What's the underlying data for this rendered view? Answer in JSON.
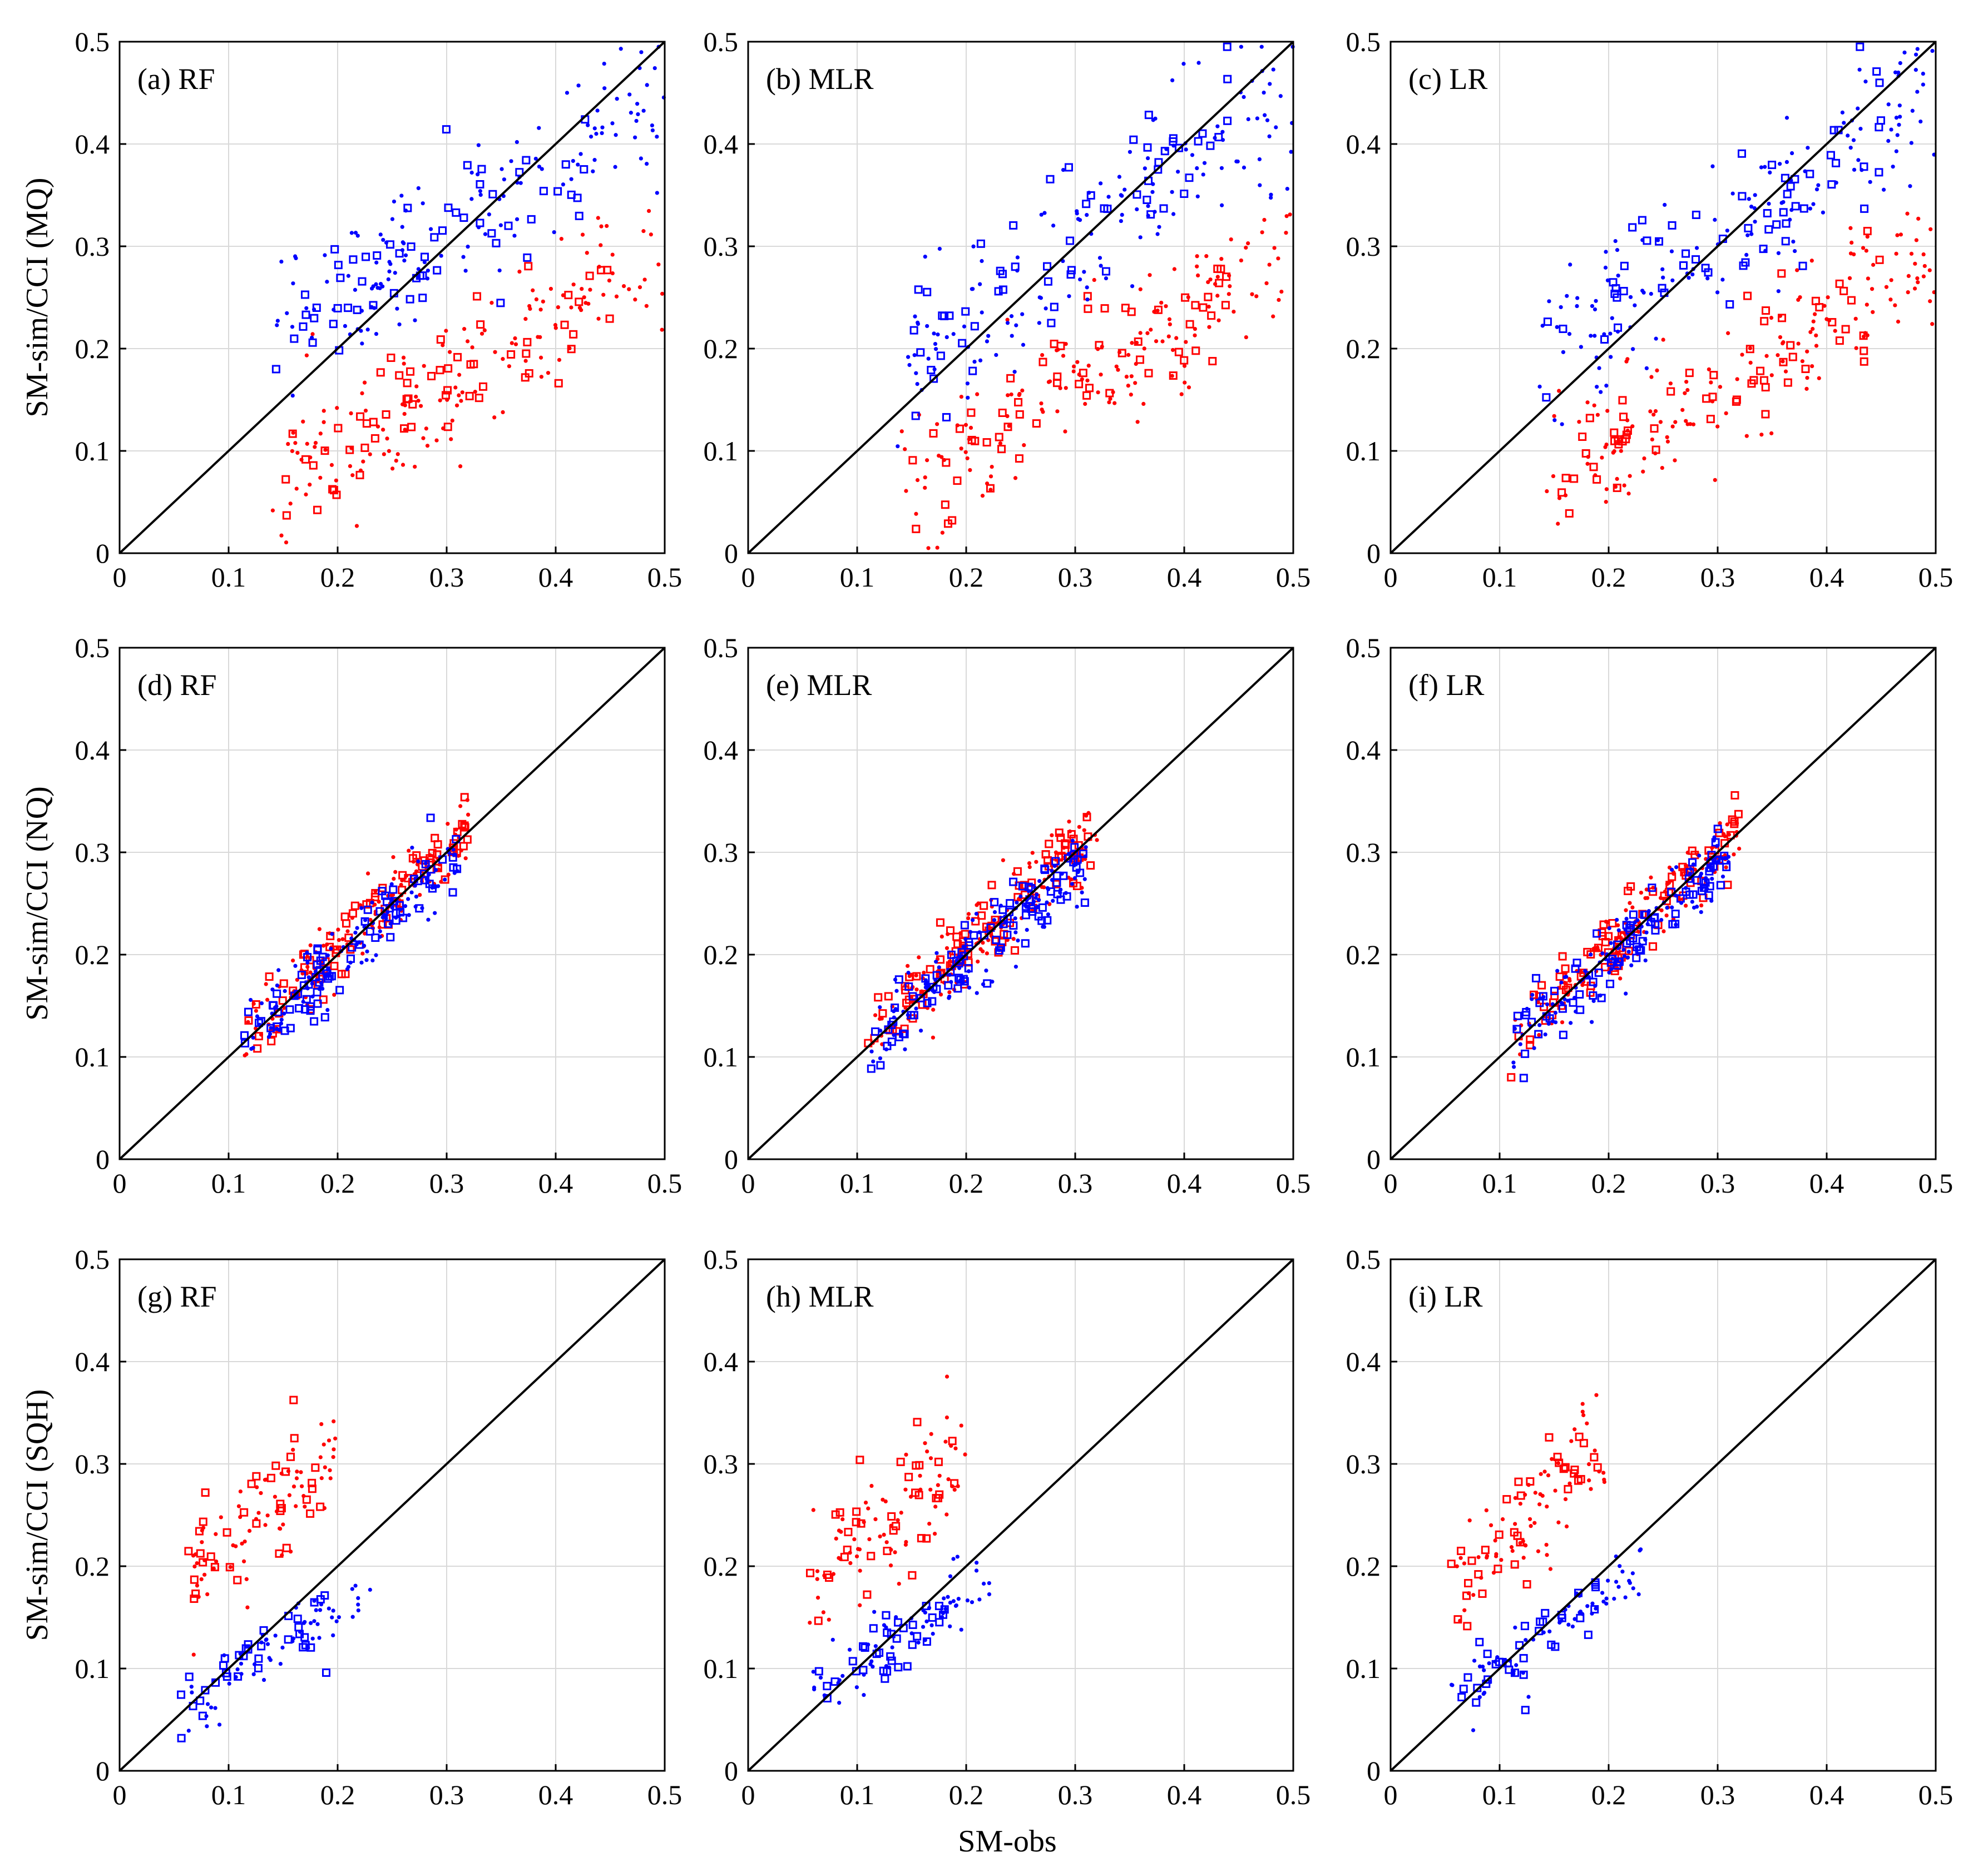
{
  "figure": {
    "xlabel": "SM-obs",
    "colors": {
      "red_series": "#ff0000",
      "blue_series": "#0000ff",
      "grid": "#d9d9d9",
      "axis": "#000000"
    }
  },
  "chart_data": [
    {
      "type": "scatter",
      "title": "(a) RF",
      "ylabel": "SM-sim/CCI (MQ)",
      "xlim": [
        0,
        0.5
      ],
      "ylim": [
        0,
        0.5
      ],
      "xticks": [
        "0",
        "0.1",
        "0.2",
        "0.3",
        "0.4",
        "0.5"
      ],
      "yticks": [
        "0",
        "0.1",
        "0.2",
        "0.3",
        "0.4",
        "0.5"
      ],
      "grid": true,
      "diagonal": true,
      "series": [
        {
          "name": "red-dots",
          "marker": "dot",
          "color": "#ff0000",
          "cluster": {
            "count": 150,
            "x": [
              0.14,
              0.5
            ],
            "intercept": -0.02,
            "slope": 0.62,
            "spread": 0.035,
            "seed": 11
          }
        },
        {
          "name": "red-squares",
          "marker": "square",
          "color": "#ff0000",
          "cluster": {
            "count": 60,
            "x": [
              0.15,
              0.45
            ],
            "intercept": -0.02,
            "slope": 0.62,
            "spread": 0.035,
            "seed": 12
          }
        },
        {
          "name": "blue-dots",
          "marker": "dot",
          "color": "#0000ff",
          "cluster": {
            "count": 140,
            "x": [
              0.14,
              0.5
            ],
            "intercept": 0.13,
            "slope": 0.62,
            "spread": 0.035,
            "seed": 13
          }
        },
        {
          "name": "blue-squares",
          "marker": "square",
          "color": "#0000ff",
          "cluster": {
            "count": 60,
            "x": [
              0.14,
              0.45
            ],
            "intercept": 0.13,
            "slope": 0.62,
            "spread": 0.035,
            "seed": 14
          }
        }
      ]
    },
    {
      "type": "scatter",
      "title": "(b) MLR",
      "ylabel": "",
      "xlim": [
        0,
        0.5
      ],
      "ylim": [
        0,
        0.5
      ],
      "xticks": [
        "0",
        "0.1",
        "0.2",
        "0.3",
        "0.4",
        "0.5"
      ],
      "yticks": [
        "0",
        "0.1",
        "0.2",
        "0.3",
        "0.4",
        "0.5"
      ],
      "grid": true,
      "diagonal": true,
      "series": [
        {
          "name": "red-dots",
          "marker": "dot",
          "color": "#ff0000",
          "cluster": {
            "count": 150,
            "x": [
              0.14,
              0.5
            ],
            "intercept": -0.02,
            "slope": 0.62,
            "spread": 0.035,
            "seed": 21
          }
        },
        {
          "name": "red-squares",
          "marker": "square",
          "color": "#ff0000",
          "cluster": {
            "count": 60,
            "x": [
              0.15,
              0.45
            ],
            "intercept": -0.02,
            "slope": 0.62,
            "spread": 0.035,
            "seed": 22
          }
        },
        {
          "name": "blue-dots",
          "marker": "dot",
          "color": "#0000ff",
          "cluster": {
            "count": 140,
            "x": [
              0.13,
              0.5
            ],
            "intercept": 0.09,
            "slope": 0.72,
            "spread": 0.04,
            "seed": 23
          }
        },
        {
          "name": "blue-squares",
          "marker": "square",
          "color": "#0000ff",
          "cluster": {
            "count": 60,
            "x": [
              0.14,
              0.45
            ],
            "intercept": 0.09,
            "slope": 0.72,
            "spread": 0.04,
            "seed": 24
          }
        }
      ]
    },
    {
      "type": "scatter",
      "title": "(c) LR",
      "ylabel": "",
      "xlim": [
        0,
        0.5
      ],
      "ylim": [
        0,
        0.5
      ],
      "xticks": [
        "0",
        "0.1",
        "0.2",
        "0.3",
        "0.4",
        "0.5"
      ],
      "yticks": [
        "0",
        "0.1",
        "0.2",
        "0.3",
        "0.4",
        "0.5"
      ],
      "grid": true,
      "diagonal": true,
      "series": [
        {
          "name": "red-dots",
          "marker": "dot",
          "color": "#ff0000",
          "cluster": {
            "count": 150,
            "x": [
              0.14,
              0.5
            ],
            "intercept": -0.02,
            "slope": 0.62,
            "spread": 0.035,
            "seed": 31
          }
        },
        {
          "name": "red-squares",
          "marker": "square",
          "color": "#ff0000",
          "cluster": {
            "count": 60,
            "x": [
              0.15,
              0.45
            ],
            "intercept": -0.02,
            "slope": 0.62,
            "spread": 0.035,
            "seed": 32
          }
        },
        {
          "name": "blue-dots",
          "marker": "dot",
          "color": "#0000ff",
          "cluster": {
            "count": 140,
            "x": [
              0.13,
              0.5
            ],
            "intercept": 0.09,
            "slope": 0.72,
            "spread": 0.04,
            "seed": 33
          }
        },
        {
          "name": "blue-squares",
          "marker": "square",
          "color": "#0000ff",
          "cluster": {
            "count": 60,
            "x": [
              0.14,
              0.45
            ],
            "intercept": 0.09,
            "slope": 0.72,
            "spread": 0.04,
            "seed": 34
          }
        }
      ]
    },
    {
      "type": "scatter",
      "title": "(d) RF",
      "ylabel": "SM-sim/CCI (NQ)",
      "xlim": [
        0,
        0.5
      ],
      "ylim": [
        0,
        0.5
      ],
      "xticks": [
        "0",
        "0.1",
        "0.2",
        "0.3",
        "0.4",
        "0.5"
      ],
      "yticks": [
        "0",
        "0.1",
        "0.2",
        "0.3",
        "0.4",
        "0.5"
      ],
      "grid": true,
      "diagonal": true,
      "series": [
        {
          "name": "red-dots",
          "marker": "dot",
          "color": "#ff0000",
          "cluster": {
            "count": 110,
            "x": [
              0.11,
              0.32
            ],
            "intercept": 0.01,
            "slope": 0.98,
            "spread": 0.018,
            "seed": 41
          }
        },
        {
          "name": "red-squares",
          "marker": "square",
          "color": "#ff0000",
          "cluster": {
            "count": 80,
            "x": [
              0.11,
              0.32
            ],
            "intercept": 0.01,
            "slope": 0.98,
            "spread": 0.018,
            "seed": 42
          }
        },
        {
          "name": "blue-dots",
          "marker": "dot",
          "color": "#0000ff",
          "cluster": {
            "count": 110,
            "x": [
              0.11,
              0.31
            ],
            "intercept": 0.015,
            "slope": 0.9,
            "spread": 0.018,
            "seed": 43
          }
        },
        {
          "name": "blue-squares",
          "marker": "square",
          "color": "#0000ff",
          "cluster": {
            "count": 80,
            "x": [
              0.11,
              0.31
            ],
            "intercept": 0.015,
            "slope": 0.9,
            "spread": 0.018,
            "seed": 44
          }
        }
      ]
    },
    {
      "type": "scatter",
      "title": "(e) MLR",
      "ylabel": "",
      "xlim": [
        0,
        0.5
      ],
      "ylim": [
        0,
        0.5
      ],
      "xticks": [
        "0",
        "0.1",
        "0.2",
        "0.3",
        "0.4",
        "0.5"
      ],
      "yticks": [
        "0",
        "0.1",
        "0.2",
        "0.3",
        "0.4",
        "0.5"
      ],
      "grid": true,
      "diagonal": true,
      "series": [
        {
          "name": "red-dots",
          "marker": "dot",
          "color": "#ff0000",
          "cluster": {
            "count": 110,
            "x": [
              0.11,
              0.32
            ],
            "intercept": 0.01,
            "slope": 0.98,
            "spread": 0.018,
            "seed": 51
          }
        },
        {
          "name": "red-squares",
          "marker": "square",
          "color": "#ff0000",
          "cluster": {
            "count": 90,
            "x": [
              0.11,
              0.32
            ],
            "intercept": 0.01,
            "slope": 0.98,
            "spread": 0.018,
            "seed": 52
          }
        },
        {
          "name": "blue-dots",
          "marker": "dot",
          "color": "#0000ff",
          "cluster": {
            "count": 110,
            "x": [
              0.11,
              0.31
            ],
            "intercept": 0.015,
            "slope": 0.9,
            "spread": 0.018,
            "seed": 53
          }
        },
        {
          "name": "blue-squares",
          "marker": "square",
          "color": "#0000ff",
          "cluster": {
            "count": 90,
            "x": [
              0.11,
              0.31
            ],
            "intercept": 0.015,
            "slope": 0.9,
            "spread": 0.018,
            "seed": 54
          }
        }
      ]
    },
    {
      "type": "scatter",
      "title": "(f) LR",
      "ylabel": "",
      "xlim": [
        0,
        0.5
      ],
      "ylim": [
        0,
        0.5
      ],
      "xticks": [
        "0",
        "0.1",
        "0.2",
        "0.3",
        "0.4",
        "0.5"
      ],
      "yticks": [
        "0",
        "0.1",
        "0.2",
        "0.3",
        "0.4",
        "0.5"
      ],
      "grid": true,
      "diagonal": true,
      "series": [
        {
          "name": "red-dots",
          "marker": "dot",
          "color": "#ff0000",
          "cluster": {
            "count": 110,
            "x": [
              0.11,
              0.32
            ],
            "intercept": 0.01,
            "slope": 0.98,
            "spread": 0.018,
            "seed": 61
          }
        },
        {
          "name": "red-squares",
          "marker": "square",
          "color": "#ff0000",
          "cluster": {
            "count": 85,
            "x": [
              0.11,
              0.32
            ],
            "intercept": 0.01,
            "slope": 0.98,
            "spread": 0.018,
            "seed": 62
          }
        },
        {
          "name": "blue-dots",
          "marker": "dot",
          "color": "#0000ff",
          "cluster": {
            "count": 110,
            "x": [
              0.11,
              0.31
            ],
            "intercept": 0.015,
            "slope": 0.9,
            "spread": 0.018,
            "seed": 63
          }
        },
        {
          "name": "blue-squares",
          "marker": "square",
          "color": "#0000ff",
          "cluster": {
            "count": 85,
            "x": [
              0.11,
              0.31
            ],
            "intercept": 0.015,
            "slope": 0.9,
            "spread": 0.018,
            "seed": 64
          }
        }
      ]
    },
    {
      "type": "scatter",
      "title": "(g) RF",
      "ylabel": "SM-sim/CCI (SQH)",
      "xlim": [
        0,
        0.5
      ],
      "ylim": [
        0,
        0.5
      ],
      "xticks": [
        "0",
        "0.1",
        "0.2",
        "0.3",
        "0.4",
        "0.5"
      ],
      "yticks": [
        "0",
        "0.1",
        "0.2",
        "0.3",
        "0.4",
        "0.5"
      ],
      "grid": true,
      "diagonal": true,
      "series": [
        {
          "name": "red-dots",
          "marker": "dot",
          "color": "#ff0000",
          "cluster": {
            "count": 70,
            "x": [
              0.055,
              0.2
            ],
            "intercept": 0.13,
            "slope": 0.9,
            "spread": 0.03,
            "seed": 71
          }
        },
        {
          "name": "red-squares",
          "marker": "square",
          "color": "#ff0000",
          "cluster": {
            "count": 35,
            "x": [
              0.055,
              0.19
            ],
            "intercept": 0.13,
            "slope": 0.9,
            "spread": 0.03,
            "seed": 72
          }
        },
        {
          "name": "blue-dots",
          "marker": "dot",
          "color": "#0000ff",
          "cluster": {
            "count": 60,
            "x": [
              0.055,
              0.23
            ],
            "intercept": 0.03,
            "slope": 0.65,
            "spread": 0.015,
            "seed": 73
          }
        },
        {
          "name": "blue-squares",
          "marker": "square",
          "color": "#0000ff",
          "cluster": {
            "count": 35,
            "x": [
              0.055,
              0.19
            ],
            "intercept": 0.03,
            "slope": 0.65,
            "spread": 0.015,
            "seed": 74
          }
        }
      ]
    },
    {
      "type": "scatter",
      "title": "(h) MLR",
      "ylabel": "",
      "xlim": [
        0,
        0.5
      ],
      "ylim": [
        0,
        0.5
      ],
      "xticks": [
        "0",
        "0.1",
        "0.2",
        "0.3",
        "0.4",
        "0.5"
      ],
      "yticks": [
        "0",
        "0.1",
        "0.2",
        "0.3",
        "0.4",
        "0.5"
      ],
      "grid": true,
      "diagonal": true,
      "series": [
        {
          "name": "red-dots",
          "marker": "dot",
          "color": "#ff0000",
          "cluster": {
            "count": 70,
            "x": [
              0.055,
              0.2
            ],
            "intercept": 0.13,
            "slope": 0.9,
            "spread": 0.03,
            "seed": 81
          }
        },
        {
          "name": "red-squares",
          "marker": "square",
          "color": "#ff0000",
          "cluster": {
            "count": 35,
            "x": [
              0.055,
              0.19
            ],
            "intercept": 0.13,
            "slope": 0.9,
            "spread": 0.03,
            "seed": 82
          }
        },
        {
          "name": "blue-dots",
          "marker": "dot",
          "color": "#0000ff",
          "cluster": {
            "count": 60,
            "x": [
              0.055,
              0.23
            ],
            "intercept": 0.03,
            "slope": 0.72,
            "spread": 0.017,
            "seed": 83
          }
        },
        {
          "name": "blue-squares",
          "marker": "square",
          "color": "#0000ff",
          "cluster": {
            "count": 35,
            "x": [
              0.055,
              0.19
            ],
            "intercept": 0.03,
            "slope": 0.72,
            "spread": 0.017,
            "seed": 84
          }
        }
      ]
    },
    {
      "type": "scatter",
      "title": "(i) LR",
      "ylabel": "",
      "xlim": [
        0,
        0.5
      ],
      "ylim": [
        0,
        0.5
      ],
      "xticks": [
        "0",
        "0.1",
        "0.2",
        "0.3",
        "0.4",
        "0.5"
      ],
      "yticks": [
        "0",
        "0.1",
        "0.2",
        "0.3",
        "0.4",
        "0.5"
      ],
      "grid": true,
      "diagonal": true,
      "series": [
        {
          "name": "red-dots",
          "marker": "dot",
          "color": "#ff0000",
          "cluster": {
            "count": 70,
            "x": [
              0.055,
              0.2
            ],
            "intercept": 0.13,
            "slope": 0.9,
            "spread": 0.03,
            "seed": 91
          }
        },
        {
          "name": "red-squares",
          "marker": "square",
          "color": "#ff0000",
          "cluster": {
            "count": 35,
            "x": [
              0.055,
              0.19
            ],
            "intercept": 0.13,
            "slope": 0.9,
            "spread": 0.03,
            "seed": 92
          }
        },
        {
          "name": "blue-dots",
          "marker": "dot",
          "color": "#0000ff",
          "cluster": {
            "count": 60,
            "x": [
              0.055,
              0.23
            ],
            "intercept": 0.03,
            "slope": 0.72,
            "spread": 0.017,
            "seed": 93
          }
        },
        {
          "name": "blue-squares",
          "marker": "square",
          "color": "#0000ff",
          "cluster": {
            "count": 35,
            "x": [
              0.055,
              0.19
            ],
            "intercept": 0.03,
            "slope": 0.72,
            "spread": 0.017,
            "seed": 94
          }
        }
      ]
    }
  ]
}
